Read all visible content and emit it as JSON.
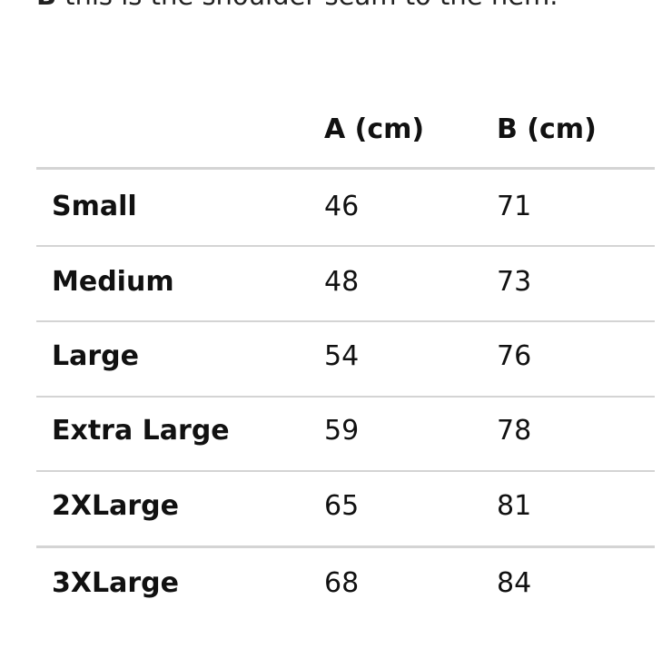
{
  "note": {
    "label": "B",
    "text": "this is the shoulder seam to the hem."
  },
  "table": {
    "columns": [
      "A (cm)",
      "B (cm)"
    ],
    "rows": [
      [
        "Small",
        46,
        71
      ],
      [
        "Medium",
        48,
        73
      ],
      [
        "Large",
        54,
        76
      ],
      [
        "Extra Large",
        59,
        78
      ],
      [
        "2XLarge",
        65,
        81
      ],
      [
        "3XLarge",
        68,
        84
      ]
    ]
  }
}
